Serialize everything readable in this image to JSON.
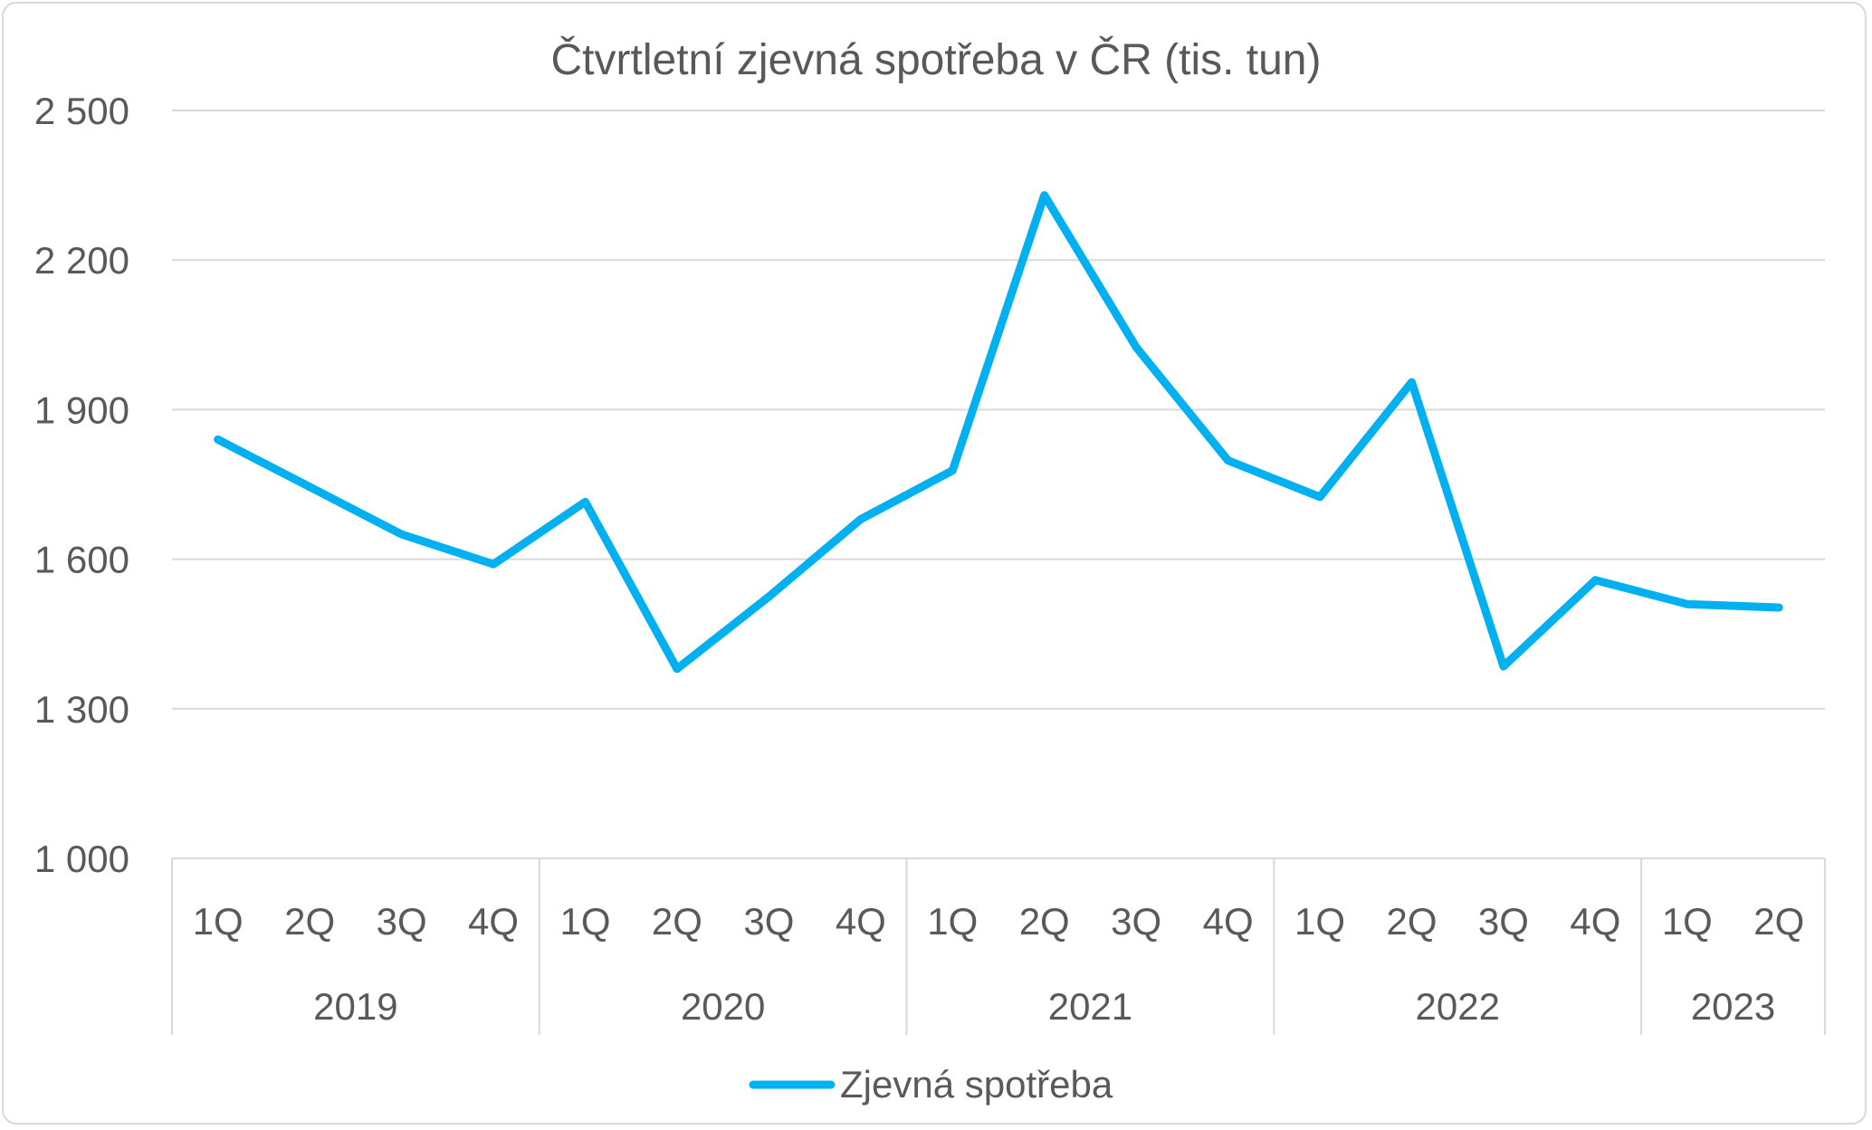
{
  "chart_data": {
    "type": "line",
    "title": "Čtvrtletní zjevná spotřeba v ČR (tis. tun)",
    "xlabel": "",
    "ylabel": "",
    "ylim": [
      1000,
      2500
    ],
    "yticks": [
      1000,
      1300,
      1600,
      1900,
      2200,
      2500
    ],
    "ytick_labels": [
      "1 000",
      "1 300",
      "1 600",
      "1 900",
      "2 200",
      "2 500"
    ],
    "grid": true,
    "legend_position": "bottom",
    "color": "#00b0f0",
    "groups": [
      {
        "label": "2019",
        "categories": [
          "1Q",
          "2Q",
          "3Q",
          "4Q"
        ]
      },
      {
        "label": "2020",
        "categories": [
          "1Q",
          "2Q",
          "3Q",
          "4Q"
        ]
      },
      {
        "label": "2021",
        "categories": [
          "1Q",
          "2Q",
          "3Q",
          "4Q"
        ]
      },
      {
        "label": "2022",
        "categories": [
          "1Q",
          "2Q",
          "3Q",
          "4Q"
        ]
      },
      {
        "label": "2023",
        "categories": [
          "1Q",
          "2Q"
        ]
      }
    ],
    "series": [
      {
        "name": "Zjevná spotřeba",
        "values": [
          1840,
          1745,
          1650,
          1590,
          1715,
          1380,
          1525,
          1680,
          1778,
          2330,
          2025,
          1798,
          1725,
          1955,
          1385,
          1558,
          1510,
          1503
        ]
      }
    ]
  }
}
